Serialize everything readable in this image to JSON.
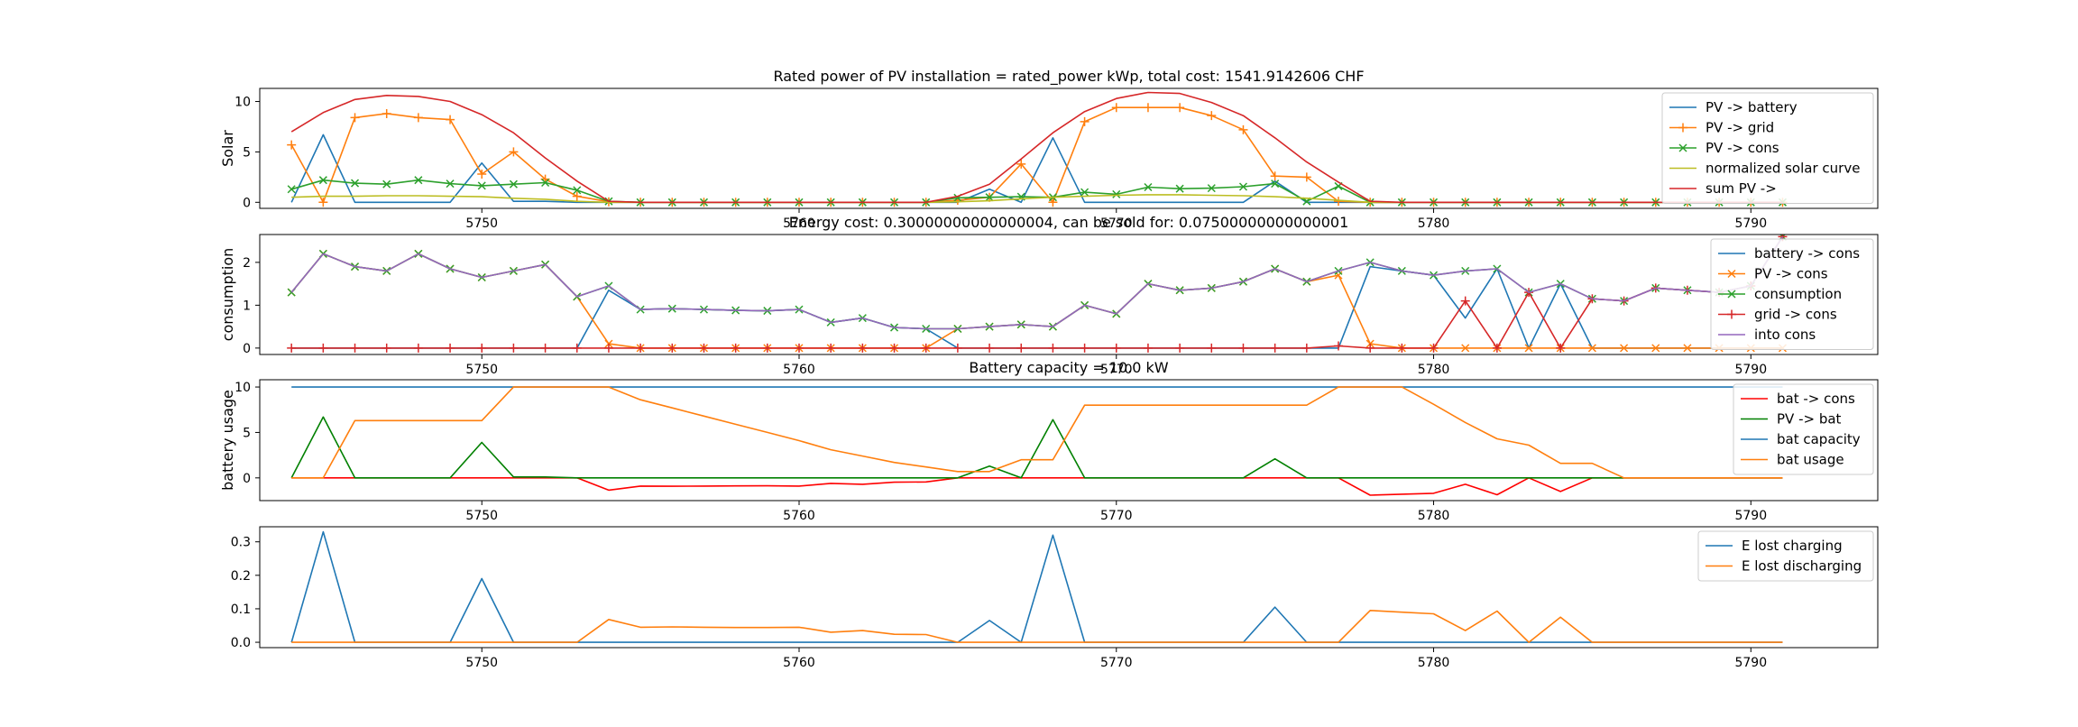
{
  "chart_data": [
    {
      "type": "line",
      "title": "Rated power of PV installation = rated_power kWp, total cost: 1541.9142606 CHF",
      "ylabel": "Solar",
      "xlim": [
        5743,
        5794
      ],
      "ylim": [
        -0.6,
        11.3
      ],
      "xticks": [
        5750,
        5760,
        5770,
        5780,
        5790
      ],
      "yticks": [
        0,
        5,
        10
      ],
      "legend_position": "top-right",
      "x": [
        5744,
        5745,
        5746,
        5747,
        5748,
        5749,
        5750,
        5751,
        5752,
        5753,
        5754,
        5755,
        5756,
        5757,
        5758,
        5759,
        5760,
        5761,
        5762,
        5763,
        5764,
        5765,
        5766,
        5767,
        5768,
        5769,
        5770,
        5771,
        5772,
        5773,
        5774,
        5775,
        5776,
        5777,
        5778,
        5779,
        5780,
        5781,
        5782,
        5783,
        5784,
        5785,
        5786,
        5787,
        5788,
        5789,
        5790,
        5791
      ],
      "series": [
        {
          "name": "PV -> battery",
          "color": "#1f77b4",
          "marker": "none",
          "values": [
            0,
            6.7,
            0,
            0,
            0,
            0,
            3.9,
            0.1,
            0.1,
            0,
            0,
            0,
            0,
            0,
            0,
            0,
            0,
            0,
            0,
            0,
            0,
            0,
            1.3,
            0,
            6.4,
            0,
            0,
            0,
            0,
            0,
            0,
            2.1,
            0,
            0,
            0,
            0,
            0,
            0,
            0,
            0,
            0,
            0,
            0,
            0,
            0,
            0,
            0,
            0
          ]
        },
        {
          "name": "PV -> grid",
          "color": "#ff7f0e",
          "marker": "plus",
          "values": [
            5.7,
            0,
            8.4,
            8.8,
            8.4,
            8.2,
            2.8,
            5.0,
            2.3,
            0.6,
            0.05,
            0,
            0,
            0,
            0,
            0,
            0,
            0,
            0,
            0,
            0,
            0.2,
            0.5,
            3.8,
            0,
            8.0,
            9.4,
            9.4,
            9.4,
            8.6,
            7.2,
            2.6,
            2.5,
            0.1,
            0,
            0,
            0,
            0,
            0,
            0,
            0,
            0,
            0,
            0,
            0,
            0,
            0,
            0
          ]
        },
        {
          "name": "PV -> cons",
          "color": "#2ca02c",
          "marker": "x",
          "values": [
            1.3,
            2.2,
            1.9,
            1.8,
            2.2,
            1.85,
            1.65,
            1.8,
            1.95,
            1.2,
            0.1,
            0,
            0,
            0,
            0,
            0,
            0,
            0,
            0,
            0,
            0,
            0.45,
            0.5,
            0.55,
            0.5,
            1.0,
            0.8,
            1.5,
            1.35,
            1.4,
            1.55,
            1.85,
            0.1,
            1.6,
            0,
            0,
            0,
            0,
            0,
            0,
            0,
            0,
            0,
            0,
            0,
            0,
            0,
            0
          ]
        },
        {
          "name": "normalized solar curve",
          "color": "#bcbd22",
          "marker": "none",
          "values": [
            0.5,
            0.6,
            0.6,
            0.65,
            0.65,
            0.6,
            0.55,
            0.4,
            0.3,
            0.1,
            0,
            0,
            0,
            0,
            0,
            0,
            0,
            0,
            0,
            0,
            0,
            0.05,
            0.15,
            0.35,
            0.5,
            0.6,
            0.7,
            0.75,
            0.75,
            0.7,
            0.65,
            0.55,
            0.4,
            0.2,
            0,
            0,
            0,
            0,
            0,
            0,
            0,
            0,
            0,
            0,
            0,
            0,
            0,
            0
          ]
        },
        {
          "name": "sum PV ->",
          "color": "#d62728",
          "marker": "none",
          "values": [
            7.0,
            8.9,
            10.2,
            10.6,
            10.5,
            10.0,
            8.7,
            6.9,
            4.4,
            2.1,
            0.1,
            0,
            0,
            0,
            0,
            0,
            0,
            0,
            0,
            0,
            0,
            0.6,
            1.8,
            4.3,
            6.9,
            9.0,
            10.3,
            10.9,
            10.8,
            9.9,
            8.6,
            6.4,
            4.0,
            2.0,
            0.1,
            0,
            0,
            0,
            0,
            0,
            0,
            0,
            0,
            0,
            0,
            0,
            0,
            0
          ]
        }
      ]
    },
    {
      "type": "line",
      "title": "Energy cost: 0.30000000000000004, can be sold for: 0.07500000000000001",
      "ylabel": "consumption",
      "xlim": [
        5743,
        5794
      ],
      "ylim": [
        -0.15,
        2.65
      ],
      "xticks": [
        5750,
        5760,
        5770,
        5780,
        5790
      ],
      "yticks": [
        0,
        1,
        2
      ],
      "legend_position": "top-right",
      "x": [
        5744,
        5745,
        5746,
        5747,
        5748,
        5749,
        5750,
        5751,
        5752,
        5753,
        5754,
        5755,
        5756,
        5757,
        5758,
        5759,
        5760,
        5761,
        5762,
        5763,
        5764,
        5765,
        5766,
        5767,
        5768,
        5769,
        5770,
        5771,
        5772,
        5773,
        5774,
        5775,
        5776,
        5777,
        5778,
        5779,
        5780,
        5781,
        5782,
        5783,
        5784,
        5785,
        5786,
        5787,
        5788,
        5789,
        5790,
        5791
      ],
      "series": [
        {
          "name": "battery -> cons",
          "color": "#1f77b4",
          "marker": "none",
          "values": [
            0,
            0,
            0,
            0,
            0,
            0,
            0,
            0,
            0,
            0,
            1.35,
            0.9,
            0.92,
            0.9,
            0.88,
            0.87,
            0.9,
            0.6,
            0.7,
            0.48,
            0.45,
            0,
            0,
            0,
            0,
            0,
            0,
            0,
            0,
            0,
            0,
            0,
            0,
            0,
            1.9,
            1.8,
            1.7,
            0.7,
            1.85,
            0,
            1.5,
            0,
            0,
            0,
            0,
            0,
            0,
            0
          ]
        },
        {
          "name": "PV -> cons",
          "color": "#ff7f0e",
          "marker": "x",
          "values": [
            1.3,
            2.2,
            1.9,
            1.8,
            2.2,
            1.85,
            1.65,
            1.8,
            1.95,
            1.2,
            0.1,
            0,
            0,
            0,
            0,
            0,
            0,
            0,
            0,
            0,
            0,
            0.45,
            0.5,
            0.55,
            0.5,
            1.0,
            0.8,
            1.5,
            1.35,
            1.4,
            1.55,
            1.85,
            1.55,
            1.7,
            0.1,
            0,
            0,
            0,
            0,
            0,
            0,
            0,
            0,
            0,
            0,
            0,
            0,
            0
          ]
        },
        {
          "name": "consumption",
          "color": "#2ca02c",
          "marker": "x",
          "values": [
            1.3,
            2.2,
            1.9,
            1.8,
            2.2,
            1.85,
            1.65,
            1.8,
            1.95,
            1.2,
            1.45,
            0.9,
            0.92,
            0.9,
            0.88,
            0.87,
            0.9,
            0.6,
            0.7,
            0.48,
            0.45,
            0.45,
            0.5,
            0.55,
            0.5,
            1.0,
            0.8,
            1.5,
            1.35,
            1.4,
            1.55,
            1.85,
            1.55,
            1.8,
            2.0,
            1.8,
            1.7,
            1.8,
            1.85,
            1.3,
            1.5,
            1.15,
            1.1,
            1.4,
            1.35,
            1.3,
            1.45,
            2.6
          ]
        },
        {
          "name": "grid -> cons",
          "color": "#d62728",
          "marker": "plus",
          "values": [
            0,
            0,
            0,
            0,
            0,
            0,
            0,
            0,
            0,
            0,
            0,
            0,
            0,
            0,
            0,
            0,
            0,
            0,
            0,
            0,
            0,
            0,
            0,
            0,
            0,
            0,
            0,
            0,
            0,
            0,
            0,
            0,
            0,
            0.05,
            0,
            0,
            0,
            1.1,
            0,
            1.3,
            0,
            1.15,
            1.1,
            1.4,
            1.35,
            1.3,
            1.45,
            2.6
          ]
        },
        {
          "name": "into cons",
          "color": "#9467bd",
          "marker": "none",
          "values": [
            1.3,
            2.2,
            1.9,
            1.8,
            2.2,
            1.85,
            1.65,
            1.8,
            1.95,
            1.2,
            1.45,
            0.9,
            0.92,
            0.9,
            0.88,
            0.87,
            0.9,
            0.6,
            0.7,
            0.48,
            0.45,
            0.45,
            0.5,
            0.55,
            0.5,
            1.0,
            0.8,
            1.5,
            1.35,
            1.4,
            1.55,
            1.85,
            1.55,
            1.8,
            2.0,
            1.8,
            1.7,
            1.8,
            1.85,
            1.3,
            1.5,
            1.15,
            1.1,
            1.4,
            1.35,
            1.3,
            1.45,
            2.6
          ]
        }
      ]
    },
    {
      "type": "line",
      "title": "Battery capacity = 10.0 kW",
      "ylabel": "battery usage",
      "xlim": [
        5743,
        5794
      ],
      "ylim": [
        -2.5,
        10.8
      ],
      "xticks": [
        5750,
        5760,
        5770,
        5780,
        5790
      ],
      "yticks": [
        0,
        5,
        10
      ],
      "legend_position": "top-right",
      "x": [
        5744,
        5745,
        5746,
        5747,
        5748,
        5749,
        5750,
        5751,
        5752,
        5753,
        5754,
        5755,
        5756,
        5757,
        5758,
        5759,
        5760,
        5761,
        5762,
        5763,
        5764,
        5765,
        5766,
        5767,
        5768,
        5769,
        5770,
        5771,
        5772,
        5773,
        5774,
        5775,
        5776,
        5777,
        5778,
        5779,
        5780,
        5781,
        5782,
        5783,
        5784,
        5785,
        5786,
        5787,
        5788,
        5789,
        5790,
        5791
      ],
      "series": [
        {
          "name": "bat -> cons",
          "color": "#ff0000",
          "marker": "none",
          "values": [
            0,
            0,
            0,
            0,
            0,
            0,
            0,
            0,
            0,
            0,
            -1.35,
            -0.9,
            -0.92,
            -0.9,
            -0.88,
            -0.87,
            -0.9,
            -0.6,
            -0.7,
            -0.48,
            -0.45,
            0,
            0,
            0,
            0,
            0,
            0,
            0,
            0,
            0,
            0,
            0,
            0,
            0,
            -1.9,
            -1.8,
            -1.7,
            -0.7,
            -1.85,
            0,
            -1.5,
            0,
            0,
            0,
            0,
            0,
            0,
            0
          ]
        },
        {
          "name": "PV -> bat",
          "color": "#008000",
          "marker": "none",
          "values": [
            0,
            6.7,
            0,
            0,
            0,
            0,
            3.9,
            0.1,
            0.1,
            0,
            0,
            0,
            0,
            0,
            0,
            0,
            0,
            0,
            0,
            0,
            0,
            0,
            1.3,
            0,
            6.4,
            0,
            0,
            0,
            0,
            0,
            0,
            2.1,
            0,
            0,
            0,
            0,
            0,
            0,
            0,
            0,
            0,
            0,
            0,
            0,
            0,
            0,
            0,
            0
          ]
        },
        {
          "name": "bat capacity",
          "color": "#1f77b4",
          "marker": "none",
          "values": [
            10,
            10,
            10,
            10,
            10,
            10,
            10,
            10,
            10,
            10,
            10,
            10,
            10,
            10,
            10,
            10,
            10,
            10,
            10,
            10,
            10,
            10,
            10,
            10,
            10,
            10,
            10,
            10,
            10,
            10,
            10,
            10,
            10,
            10,
            10,
            10,
            10,
            10,
            10,
            10,
            10,
            10,
            10,
            10,
            10,
            10,
            10,
            10
          ]
        },
        {
          "name": "bat usage",
          "color": "#ff7f0e",
          "marker": "none",
          "values": [
            0,
            0,
            6.3,
            6.3,
            6.3,
            6.3,
            6.3,
            10,
            10,
            10,
            10,
            8.6,
            7.7,
            6.8,
            5.9,
            5.0,
            4.1,
            3.1,
            2.4,
            1.7,
            1.2,
            0.7,
            0.7,
            2.0,
            2.0,
            8.0,
            8.0,
            8.0,
            8.0,
            8.0,
            8.0,
            8.0,
            8.0,
            10,
            10,
            10,
            8.1,
            6.1,
            4.3,
            3.6,
            1.6,
            1.6,
            0,
            0,
            0,
            0,
            0,
            0
          ]
        }
      ]
    },
    {
      "type": "line",
      "title": "",
      "ylabel": "",
      "xlim": [
        5743,
        5794
      ],
      "ylim": [
        -0.016,
        0.345
      ],
      "xticks": [
        5750,
        5760,
        5770,
        5780,
        5790
      ],
      "yticks": [
        0.0,
        0.1,
        0.2,
        0.3
      ],
      "legend_position": "top-right",
      "x": [
        5744,
        5745,
        5746,
        5747,
        5748,
        5749,
        5750,
        5751,
        5752,
        5753,
        5754,
        5755,
        5756,
        5757,
        5758,
        5759,
        5760,
        5761,
        5762,
        5763,
        5764,
        5765,
        5766,
        5767,
        5768,
        5769,
        5770,
        5771,
        5772,
        5773,
        5774,
        5775,
        5776,
        5777,
        5778,
        5779,
        5780,
        5781,
        5782,
        5783,
        5784,
        5785,
        5786,
        5787,
        5788,
        5789,
        5790,
        5791
      ],
      "series": [
        {
          "name": "E lost charging",
          "color": "#1f77b4",
          "marker": "none",
          "values": [
            0,
            0.33,
            0,
            0,
            0,
            0,
            0.19,
            0,
            0,
            0,
            0,
            0,
            0,
            0,
            0,
            0,
            0,
            0,
            0,
            0,
            0,
            0,
            0.065,
            0,
            0.32,
            0,
            0,
            0,
            0,
            0,
            0,
            0.105,
            0,
            0,
            0,
            0,
            0,
            0,
            0,
            0,
            0,
            0,
            0,
            0,
            0,
            0,
            0,
            0
          ]
        },
        {
          "name": "E lost discharging",
          "color": "#ff7f0e",
          "marker": "none",
          "values": [
            0,
            0,
            0,
            0,
            0,
            0,
            0,
            0,
            0,
            0,
            0.068,
            0.045,
            0.046,
            0.045,
            0.044,
            0.044,
            0.045,
            0.03,
            0.035,
            0.024,
            0.023,
            0,
            0,
            0,
            0,
            0,
            0,
            0,
            0,
            0,
            0,
            0,
            0,
            0,
            0.095,
            0.09,
            0.085,
            0.035,
            0.093,
            0,
            0.075,
            0,
            0,
            0,
            0,
            0,
            0,
            0
          ]
        }
      ]
    }
  ]
}
